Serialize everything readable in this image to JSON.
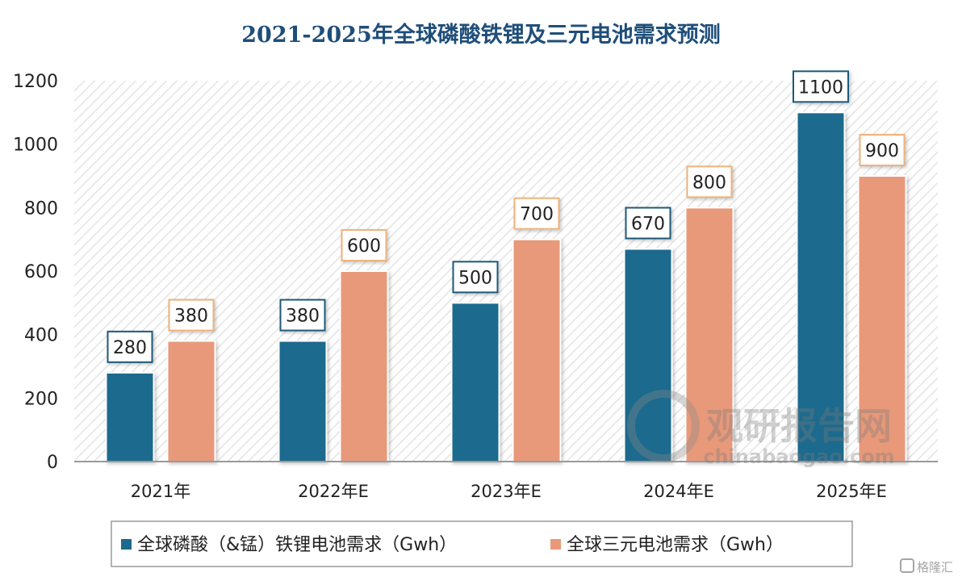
{
  "chart_data": {
    "type": "bar",
    "title": "2021-2025年全球磷酸铁锂及三元电池需求预测",
    "categories": [
      "2021年",
      "2022年E",
      "2023年E",
      "2024年E",
      "2025年E"
    ],
    "series": [
      {
        "name": "全球磷酸（&锰）铁锂电池需求（Gwh）",
        "color": "#1e6a8d",
        "label_border": "#1e5a7a",
        "values": [
          280,
          380,
          500,
          670,
          1100
        ]
      },
      {
        "name": "全球三元电池需求（Gwh）",
        "color": "#e8997a",
        "label_border": "#f0b27a",
        "values": [
          380,
          600,
          700,
          800,
          900
        ]
      }
    ],
    "y_ticks": [
      "0",
      "200",
      "400",
      "600",
      "800",
      "1000",
      "1200"
    ],
    "ylim": [
      0,
      1200
    ],
    "grid": false,
    "legend_position": "bottom"
  },
  "watermark": {
    "brand": "观研报告网",
    "url": "chinabaogao.com"
  },
  "corner_logo": {
    "text": "格隆汇"
  }
}
